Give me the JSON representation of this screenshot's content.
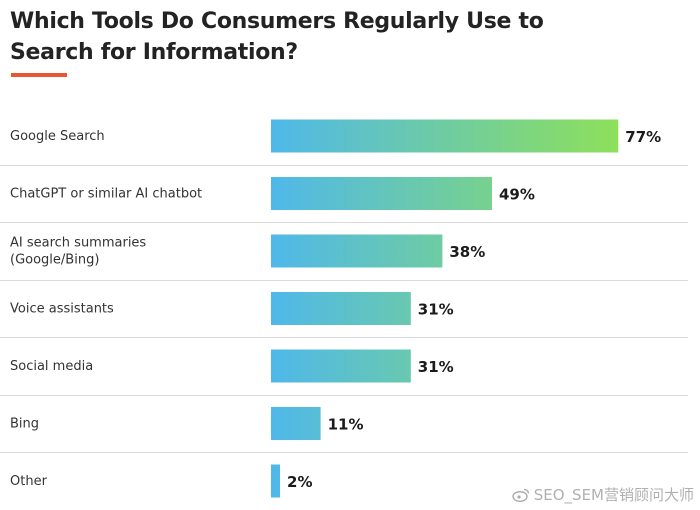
{
  "chart_data": {
    "type": "bar",
    "orientation": "horizontal",
    "title": "Which Tools Do Consumers Regularly Use to Search for Information?",
    "categories": [
      [
        "Google Search"
      ],
      [
        "ChatGPT or similar AI chatbot"
      ],
      [
        "AI search summaries",
        "(Google/Bing)"
      ],
      [
        "Voice assistants"
      ],
      [
        "Social media"
      ],
      [
        "Bing"
      ],
      [
        "Other"
      ]
    ],
    "values": [
      77,
      49,
      38,
      31,
      31,
      11,
      2
    ],
    "value_labels": [
      "77%",
      "49%",
      "38%",
      "31%",
      "31%",
      "11%",
      "2%"
    ],
    "unit": "%",
    "xlim": [
      0,
      100
    ],
    "gradient": {
      "start": "#4fb8ea",
      "end": "#8ee05a"
    },
    "divider_color": "#d9d9d9"
  },
  "accent_color": "#e8572e",
  "watermark": "SEO_SEM营销顾问大师"
}
